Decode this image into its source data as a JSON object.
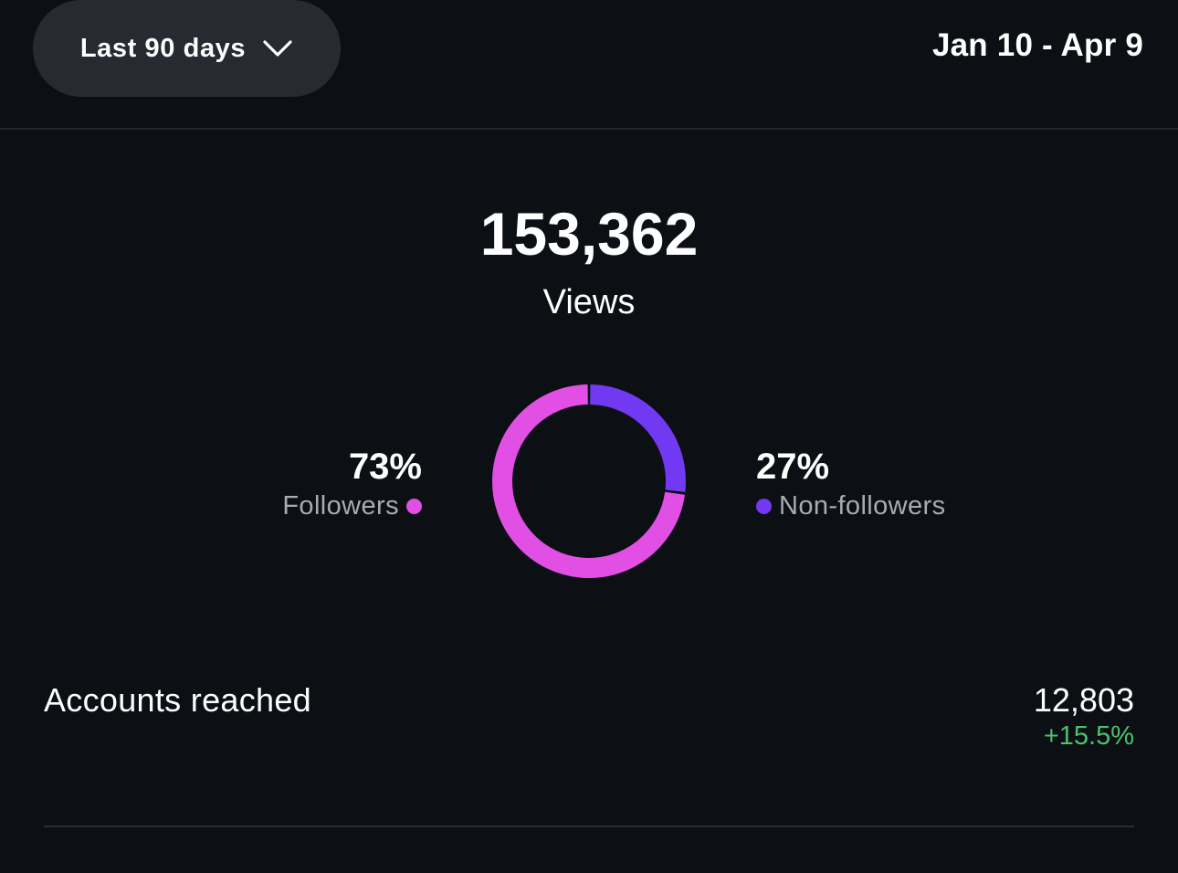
{
  "header": {
    "range_selector": "Last 90 days",
    "date_range": "Jan 10 - Apr 9"
  },
  "summary": {
    "total": "153,362",
    "label": "Views"
  },
  "breakdown": {
    "followers": {
      "percent": "73%",
      "label": "Followers",
      "color": "#e24fe4"
    },
    "non_followers": {
      "percent": "27%",
      "label": "Non-followers",
      "color": "#7239f2"
    }
  },
  "chart_data": {
    "type": "pie",
    "title": "Views",
    "categories": [
      "Followers",
      "Non-followers"
    ],
    "values": [
      73,
      27
    ],
    "colors": [
      "#e24fe4",
      "#7239f2"
    ]
  },
  "metrics": {
    "accounts_reached": {
      "label": "Accounts reached",
      "value": "12,803",
      "change": "+15.5%"
    }
  }
}
